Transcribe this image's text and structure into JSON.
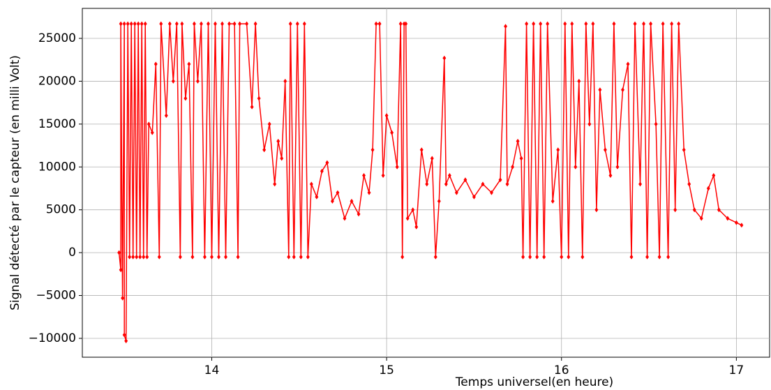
{
  "chart_data": {
    "type": "line",
    "xlabel": "Temps universel(en heure)",
    "ylabel": "Signal détecté par le capteur (en milli Volt)",
    "xlim": [
      13.26,
      17.19
    ],
    "ylim": [
      -12200,
      28500
    ],
    "xticks": [
      14,
      15,
      16,
      17
    ],
    "yticks": [
      {
        "value": -10000,
        "label": "−10000"
      },
      {
        "value": -5000,
        "label": "−5000"
      },
      0,
      5000,
      10000,
      15000,
      20000,
      25000
    ],
    "grid": true,
    "series": [
      {
        "color": "#ff0000",
        "x": [
          13.47,
          13.48,
          13.48,
          13.49,
          13.5,
          13.5,
          13.51,
          13.52,
          13.53,
          13.54,
          13.55,
          13.56,
          13.57,
          13.58,
          13.59,
          13.6,
          13.61,
          13.62,
          13.63,
          13.64,
          13.66,
          13.68,
          13.7,
          13.71,
          13.74,
          13.76,
          13.78,
          13.8,
          13.82,
          13.83,
          13.85,
          13.87,
          13.89,
          13.9,
          13.92,
          13.94,
          13.96,
          13.98,
          14.0,
          14.02,
          14.04,
          14.06,
          14.08,
          14.1,
          14.13,
          14.15,
          14.16,
          14.2,
          14.23,
          14.25,
          14.27,
          14.3,
          14.33,
          14.36,
          14.38,
          14.4,
          14.42,
          14.44,
          14.45,
          14.47,
          14.49,
          14.51,
          14.53,
          14.55,
          14.57,
          14.6,
          14.63,
          14.66,
          14.69,
          14.72,
          14.76,
          14.8,
          14.84,
          14.87,
          14.9,
          14.92,
          14.94,
          14.96,
          14.98,
          15.0,
          15.03,
          15.06,
          15.08,
          15.09,
          15.1,
          15.11,
          15.12,
          15.15,
          15.17,
          15.2,
          15.23,
          15.26,
          15.28,
          15.3,
          15.33,
          15.34,
          15.36,
          15.4,
          15.45,
          15.5,
          15.55,
          15.6,
          15.65,
          15.68,
          15.69,
          15.72,
          15.75,
          15.77,
          15.78,
          15.8,
          15.82,
          15.84,
          15.86,
          15.88,
          15.9,
          15.92,
          15.95,
          15.98,
          16.0,
          16.02,
          16.04,
          16.06,
          16.08,
          16.1,
          16.12,
          16.14,
          16.16,
          16.18,
          16.2,
          16.22,
          16.25,
          16.28,
          16.3,
          16.32,
          16.35,
          16.38,
          16.4,
          16.42,
          16.45,
          16.47,
          16.49,
          16.51,
          16.54,
          16.56,
          16.58,
          16.61,
          16.63,
          16.65,
          16.67,
          16.7,
          16.73,
          16.76,
          16.8,
          16.84,
          16.87,
          16.9,
          16.95,
          17.0,
          17.03
        ],
        "values": [
          0,
          -2000,
          26700,
          -5300,
          26700,
          -9600,
          -10300,
          26700,
          -500,
          26700,
          -500,
          26700,
          -500,
          26700,
          -500,
          26700,
          -500,
          26700,
          -500,
          15000,
          14000,
          22000,
          -500,
          26700,
          16000,
          26700,
          20000,
          26700,
          -500,
          26700,
          18000,
          22000,
          -500,
          26700,
          20000,
          26700,
          -500,
          26700,
          -500,
          26700,
          -500,
          26700,
          -500,
          26700,
          26700,
          -500,
          26700,
          26700,
          17000,
          26700,
          18000,
          12000,
          15000,
          8000,
          13000,
          11000,
          20000,
          -500,
          26700,
          -500,
          26700,
          -500,
          26700,
          -500,
          8000,
          6500,
          9500,
          10500,
          6000,
          7000,
          4000,
          6000,
          4500,
          9000,
          7000,
          12000,
          26700,
          26700,
          9000,
          16000,
          14000,
          10000,
          26700,
          -500,
          26700,
          26700,
          4000,
          5000,
          3000,
          12000,
          8000,
          11000,
          -500,
          6000,
          22700,
          8000,
          9000,
          7000,
          8500,
          6500,
          8000,
          7000,
          8500,
          26400,
          8000,
          10000,
          13000,
          11000,
          -500,
          26700,
          -500,
          26700,
          -500,
          26700,
          -500,
          26700,
          6000,
          12000,
          -500,
          26700,
          -500,
          26700,
          10000,
          20000,
          -500,
          26700,
          15000,
          26700,
          5000,
          19000,
          12000,
          9000,
          26700,
          10000,
          19000,
          22000,
          -500,
          26700,
          8000,
          26700,
          -500,
          26700,
          15000,
          -500,
          26700,
          -500,
          26700,
          5000,
          26700,
          12000,
          8000,
          5000,
          4000,
          7500,
          9000,
          5000,
          4000,
          3500,
          3200
        ]
      }
    ]
  }
}
